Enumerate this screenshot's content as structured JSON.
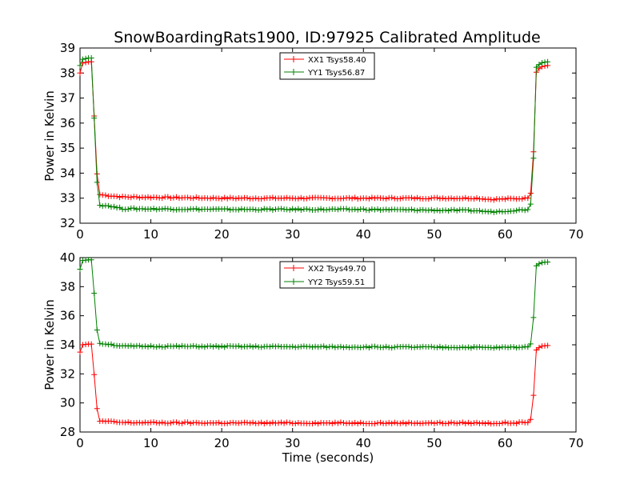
{
  "chart_data": [
    {
      "type": "line",
      "title": "SnowBoardingRats1900, ID:97925 Calibrated Amplitude",
      "xlabel": "",
      "ylabel": "Power in Kelvin",
      "xlim": [
        0,
        70
      ],
      "ylim": [
        32,
        39
      ],
      "xticks": [
        "0",
        "10",
        "20",
        "30",
        "40",
        "50",
        "60",
        "70"
      ],
      "yticks": [
        "32",
        "33",
        "34",
        "35",
        "36",
        "37",
        "38",
        "39"
      ],
      "legend_position": "top-center",
      "grid": false,
      "series": [
        {
          "name": "XX1 Tsys58.40",
          "color": "#ff0000",
          "keypoints": [
            [
              0,
              38.0
            ],
            [
              0.4,
              38.4
            ],
            [
              1.2,
              38.45
            ],
            [
              1.8,
              38.45
            ],
            [
              2.1,
              35.2
            ],
            [
              2.6,
              33.15
            ],
            [
              4,
              33.1
            ],
            [
              6,
              33.05
            ],
            [
              20,
              33.0
            ],
            [
              40,
              33.0
            ],
            [
              56,
              33.0
            ],
            [
              58,
              32.95
            ],
            [
              63.5,
              33.0
            ],
            [
              63.9,
              33.8
            ],
            [
              64.3,
              38.0
            ],
            [
              65,
              38.25
            ],
            [
              66,
              38.3
            ]
          ]
        },
        {
          "name": "YY1 Tsys56.87",
          "color": "#008000",
          "keypoints": [
            [
              0,
              38.3
            ],
            [
              0.4,
              38.55
            ],
            [
              1.2,
              38.6
            ],
            [
              1.8,
              38.6
            ],
            [
              2.1,
              35.0
            ],
            [
              2.6,
              32.72
            ],
            [
              4,
              32.7
            ],
            [
              6,
              32.58
            ],
            [
              20,
              32.55
            ],
            [
              40,
              32.55
            ],
            [
              56,
              32.5
            ],
            [
              58,
              32.45
            ],
            [
              63.5,
              32.55
            ],
            [
              63.9,
              33.4
            ],
            [
              64.3,
              38.2
            ],
            [
              65,
              38.4
            ],
            [
              66,
              38.45
            ]
          ]
        }
      ]
    },
    {
      "type": "line",
      "title": "",
      "xlabel": "Time (seconds)",
      "ylabel": "Power in Kelvin",
      "xlim": [
        0,
        70
      ],
      "ylim": [
        28,
        40
      ],
      "xticks": [
        "0",
        "10",
        "20",
        "30",
        "40",
        "50",
        "60",
        "70"
      ],
      "yticks": [
        "28",
        "30",
        "32",
        "34",
        "36",
        "38",
        "40"
      ],
      "legend_position": "top-center",
      "grid": false,
      "series": [
        {
          "name": "XX2 Tsys49.70",
          "color": "#ff0000",
          "keypoints": [
            [
              0,
              33.5
            ],
            [
              0.4,
              34.0
            ],
            [
              1.2,
              34.05
            ],
            [
              1.8,
              34.05
            ],
            [
              2.1,
              30.9
            ],
            [
              2.6,
              28.75
            ],
            [
              4,
              28.72
            ],
            [
              6,
              28.65
            ],
            [
              20,
              28.62
            ],
            [
              40,
              28.62
            ],
            [
              56,
              28.62
            ],
            [
              58,
              28.6
            ],
            [
              63.5,
              28.65
            ],
            [
              63.9,
              29.5
            ],
            [
              64.3,
              33.6
            ],
            [
              65,
              33.9
            ],
            [
              66,
              33.95
            ]
          ]
        },
        {
          "name": "YY2 Tsys59.51",
          "color": "#008000",
          "keypoints": [
            [
              0,
              39.2
            ],
            [
              0.4,
              39.8
            ],
            [
              1.2,
              39.85
            ],
            [
              1.8,
              39.85
            ],
            [
              2.1,
              36.4
            ],
            [
              2.6,
              34.1
            ],
            [
              4,
              34.05
            ],
            [
              6,
              33.9
            ],
            [
              20,
              33.88
            ],
            [
              40,
              33.85
            ],
            [
              56,
              33.82
            ],
            [
              58,
              33.8
            ],
            [
              63.5,
              33.85
            ],
            [
              63.9,
              34.7
            ],
            [
              64.3,
              39.4
            ],
            [
              65,
              39.65
            ],
            [
              66,
              39.7
            ]
          ]
        }
      ]
    }
  ]
}
